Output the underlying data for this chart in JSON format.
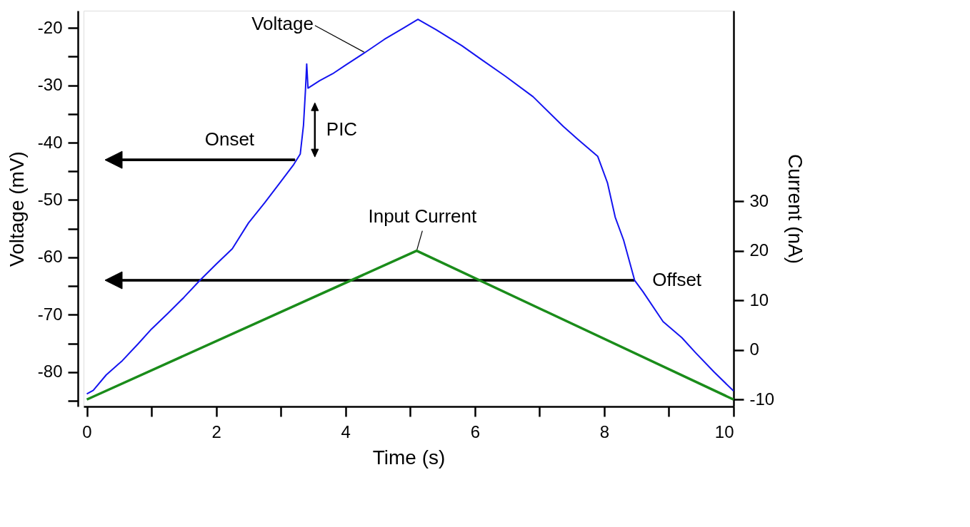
{
  "chart_data": {
    "type": "line",
    "xlabel": "Time (s)",
    "ylabel": "Voltage (mV)",
    "y2label": "Current (nA)",
    "xlim": [
      -0.05,
      10
    ],
    "xticks": [
      0,
      {
        "value": 1,
        "label": null
      },
      2,
      {
        "value": 3,
        "label": null
      },
      4,
      {
        "value": 5,
        "label": null
      },
      6,
      {
        "value": 7,
        "label": null
      },
      8,
      {
        "value": 9,
        "label": null
      },
      10
    ],
    "ylim": [
      -86,
      -17
    ],
    "yticks": [
      {
        "value": -85,
        "label": null
      },
      -80,
      {
        "value": -75,
        "label": null
      },
      -70,
      {
        "value": -65,
        "label": null
      },
      -60,
      {
        "value": -55,
        "label": null
      },
      -50,
      {
        "value": -45,
        "label": null
      },
      -40,
      {
        "value": -35,
        "label": null
      },
      -30,
      {
        "value": -25,
        "label": null
      },
      -20
    ],
    "y2lim": [
      -11.4,
      68.4
    ],
    "y2ticks": [
      -10,
      0,
      10,
      20,
      30
    ],
    "grid": false,
    "marker": "none",
    "line_style": "solid",
    "series": [
      {
        "color": "#1414f0",
        "x": [
          0,
          0.1,
          0.3,
          0.55,
          0.8,
          1.0,
          1.25,
          1.5,
          1.75,
          2.0,
          2.25,
          2.5,
          2.75,
          3.0,
          3.2,
          3.3,
          3.35,
          3.38,
          3.4,
          3.42,
          3.6,
          3.8,
          4.0,
          4.3,
          4.6,
          4.9,
          5.12,
          5.4,
          5.8,
          6.1,
          6.47,
          6.9,
          7.37,
          7.6,
          7.9,
          8.05,
          8.17,
          8.3,
          8.47,
          8.6,
          8.91,
          9.2,
          9.41,
          9.7,
          10
        ],
        "values": [
          -83.8,
          -83.2,
          -80.5,
          -78,
          -75,
          -72.5,
          -69.8,
          -67,
          -64,
          -61.2,
          -58.5,
          -54,
          -50.5,
          -46.8,
          -43.8,
          -42,
          -37,
          -31,
          -26.3,
          -30.5,
          -29.2,
          -28,
          -26.5,
          -24.3,
          -22,
          -20,
          -18.5,
          -20.3,
          -23.1,
          -25.5,
          -28.4,
          -32,
          -37.2,
          -39.5,
          -42.4,
          -47,
          -53,
          -57,
          -64,
          -66,
          -71.2,
          -74,
          -76.6,
          -80,
          -83.3
        ]
      },
      {
        "color": "#1a8c1a",
        "axis": "y2",
        "x": [
          0,
          5.1,
          10
        ],
        "values": [
          -10,
          20,
          -10
        ]
      }
    ],
    "annotations": [
      {
        "text": "Voltage",
        "x": 4.3,
        "y": -24.3
      },
      {
        "text": "Onset",
        "x": 3.25,
        "y": -43
      },
      "PIC",
      "Input Current",
      {
        "text": "Offset",
        "x": 8.5,
        "y": -64
      }
    ]
  }
}
